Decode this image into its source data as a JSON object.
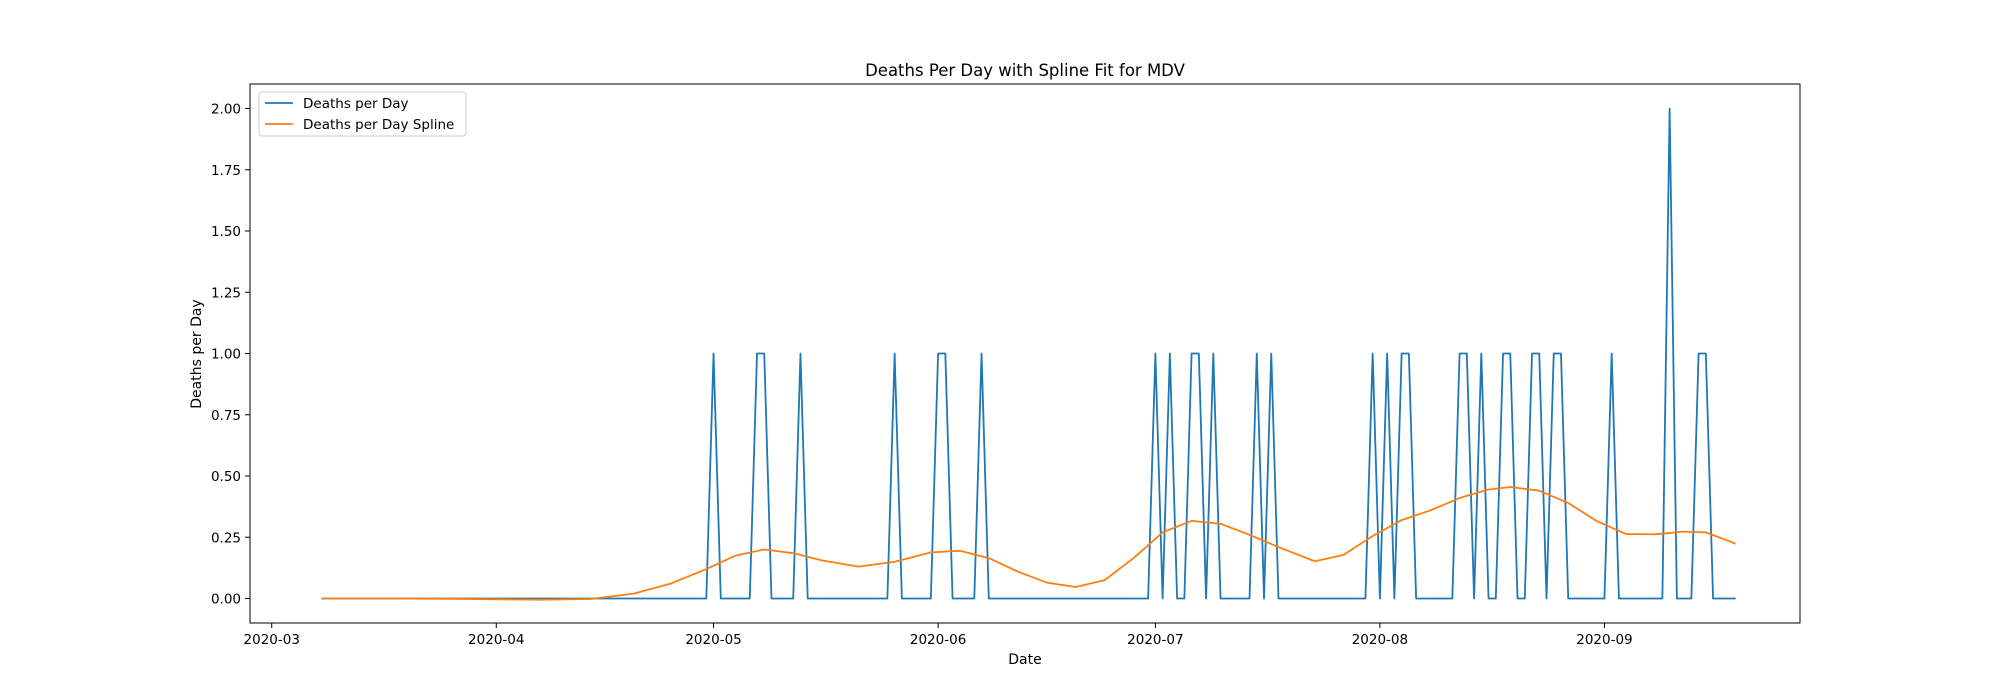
{
  "chart_data": {
    "type": "line",
    "title": "Deaths Per Day with Spline Fit for MDV",
    "xlabel": "Date",
    "ylabel": "Deaths per Day",
    "xlim": [
      "2020-02-27",
      "2020-09-28"
    ],
    "ylim": [
      -0.1,
      2.1
    ],
    "x_ticks": [
      "2020-03",
      "2020-04",
      "2020-05",
      "2020-06",
      "2020-07",
      "2020-08",
      "2020-09"
    ],
    "y_ticks": [
      "0.00",
      "0.25",
      "0.50",
      "0.75",
      "1.00",
      "1.25",
      "1.50",
      "1.75",
      "2.00"
    ],
    "grid": false,
    "legend": "top-left",
    "x_start": "2020-03-08",
    "x_end": "2020-09-19",
    "series": [
      {
        "name": "Deaths per Day",
        "color": "#1f77b4",
        "points": [
          [
            "2020-03-08",
            0
          ],
          [
            "2020-04-30",
            0
          ],
          [
            "2020-05-01",
            1
          ],
          [
            "2020-05-02",
            0
          ],
          [
            "2020-05-06",
            0
          ],
          [
            "2020-05-07",
            1
          ],
          [
            "2020-05-08",
            1
          ],
          [
            "2020-05-09",
            0
          ],
          [
            "2020-05-12",
            0
          ],
          [
            "2020-05-13",
            1
          ],
          [
            "2020-05-14",
            0
          ],
          [
            "2020-05-25",
            0
          ],
          [
            "2020-05-26",
            1
          ],
          [
            "2020-05-27",
            0
          ],
          [
            "2020-05-31",
            0
          ],
          [
            "2020-06-01",
            1
          ],
          [
            "2020-06-02",
            1
          ],
          [
            "2020-06-03",
            0
          ],
          [
            "2020-06-06",
            0
          ],
          [
            "2020-06-07",
            1
          ],
          [
            "2020-06-08",
            0
          ],
          [
            "2020-06-30",
            0
          ],
          [
            "2020-07-01",
            1
          ],
          [
            "2020-07-02",
            0
          ],
          [
            "2020-07-03",
            1
          ],
          [
            "2020-07-04",
            0
          ],
          [
            "2020-07-05",
            0
          ],
          [
            "2020-07-06",
            1
          ],
          [
            "2020-07-07",
            1
          ],
          [
            "2020-07-08",
            0
          ],
          [
            "2020-07-09",
            1
          ],
          [
            "2020-07-10",
            0
          ],
          [
            "2020-07-14",
            0
          ],
          [
            "2020-07-15",
            1
          ],
          [
            "2020-07-16",
            0
          ],
          [
            "2020-07-17",
            1
          ],
          [
            "2020-07-18",
            0
          ],
          [
            "2020-07-30",
            0
          ],
          [
            "2020-07-31",
            1
          ],
          [
            "2020-08-01",
            0
          ],
          [
            "2020-08-02",
            1
          ],
          [
            "2020-08-03",
            0
          ],
          [
            "2020-08-04",
            1
          ],
          [
            "2020-08-05",
            1
          ],
          [
            "2020-08-06",
            0
          ],
          [
            "2020-08-11",
            0
          ],
          [
            "2020-08-12",
            1
          ],
          [
            "2020-08-13",
            1
          ],
          [
            "2020-08-14",
            0
          ],
          [
            "2020-08-15",
            1
          ],
          [
            "2020-08-16",
            0
          ],
          [
            "2020-08-17",
            0
          ],
          [
            "2020-08-18",
            1
          ],
          [
            "2020-08-19",
            1
          ],
          [
            "2020-08-20",
            0
          ],
          [
            "2020-08-21",
            0
          ],
          [
            "2020-08-22",
            1
          ],
          [
            "2020-08-23",
            1
          ],
          [
            "2020-08-24",
            0
          ],
          [
            "2020-08-25",
            1
          ],
          [
            "2020-08-26",
            1
          ],
          [
            "2020-08-27",
            0
          ],
          [
            "2020-09-01",
            0
          ],
          [
            "2020-09-02",
            1
          ],
          [
            "2020-09-03",
            0
          ],
          [
            "2020-09-09",
            0
          ],
          [
            "2020-09-10",
            2
          ],
          [
            "2020-09-11",
            0
          ],
          [
            "2020-09-13",
            0
          ],
          [
            "2020-09-14",
            1
          ],
          [
            "2020-09-15",
            1
          ],
          [
            "2020-09-16",
            0
          ],
          [
            "2020-09-19",
            0
          ]
        ]
      },
      {
        "name": "Deaths per Day Spline",
        "color": "#ff7f0e",
        "points": [
          [
            "2020-03-08",
            0.0
          ],
          [
            "2020-03-18",
            0.0
          ],
          [
            "2020-03-28",
            -0.002
          ],
          [
            "2020-04-07",
            -0.005
          ],
          [
            "2020-04-14",
            -0.002
          ],
          [
            "2020-04-20",
            0.02
          ],
          [
            "2020-04-25",
            0.06
          ],
          [
            "2020-04-30",
            0.12
          ],
          [
            "2020-05-04",
            0.175
          ],
          [
            "2020-05-08",
            0.2
          ],
          [
            "2020-05-12",
            0.185
          ],
          [
            "2020-05-16",
            0.155
          ],
          [
            "2020-05-21",
            0.13
          ],
          [
            "2020-05-26",
            0.15
          ],
          [
            "2020-05-31",
            0.188
          ],
          [
            "2020-06-04",
            0.195
          ],
          [
            "2020-06-08",
            0.165
          ],
          [
            "2020-06-12",
            0.11
          ],
          [
            "2020-06-16",
            0.065
          ],
          [
            "2020-06-20",
            0.047
          ],
          [
            "2020-06-24",
            0.075
          ],
          [
            "2020-06-28",
            0.165
          ],
          [
            "2020-07-02",
            0.27
          ],
          [
            "2020-07-06",
            0.317
          ],
          [
            "2020-07-10",
            0.305
          ],
          [
            "2020-07-14",
            0.26
          ],
          [
            "2020-07-18",
            0.21
          ],
          [
            "2020-07-23",
            0.152
          ],
          [
            "2020-07-27",
            0.178
          ],
          [
            "2020-07-31",
            0.255
          ],
          [
            "2020-08-04",
            0.32
          ],
          [
            "2020-08-08",
            0.36
          ],
          [
            "2020-08-12",
            0.41
          ],
          [
            "2020-08-16",
            0.445
          ],
          [
            "2020-08-19",
            0.455
          ],
          [
            "2020-08-23",
            0.44
          ],
          [
            "2020-08-27",
            0.39
          ],
          [
            "2020-08-31",
            0.315
          ],
          [
            "2020-09-04",
            0.263
          ],
          [
            "2020-09-08",
            0.262
          ],
          [
            "2020-09-12",
            0.273
          ],
          [
            "2020-09-15",
            0.27
          ],
          [
            "2020-09-19",
            0.225
          ]
        ]
      }
    ]
  }
}
